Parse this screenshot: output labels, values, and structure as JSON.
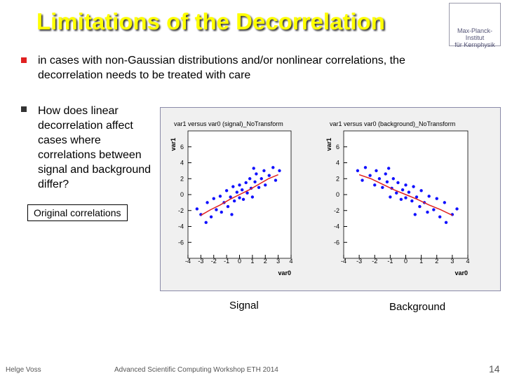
{
  "header": {
    "title": "Limitations of the Decorrelation",
    "logo": [
      "Max-Planck-Institut",
      "für Kernphysik"
    ]
  },
  "bullets": [
    "in cases with non-Gaussian distributions and/or nonlinear correlations, the  decorrelation needs to be treated with care",
    "How does linear decorrelation affect cases where correlations between signal and background differ?"
  ],
  "callout": "Original correlations",
  "plots": [
    {
      "type": "scatter",
      "title": "var1 versus var0 (signal)_NoTransform",
      "x_label": "var0",
      "y_label": "var1",
      "caption": "Signal",
      "xlim": [
        -4,
        4
      ],
      "ylim": [
        -8,
        8
      ],
      "xticks": [
        -4,
        -3,
        -2,
        -1,
        0,
        1,
        2,
        3,
        4
      ],
      "yticks": [
        -6,
        -4,
        -2,
        0,
        2,
        4,
        6
      ],
      "color": "#1010ff",
      "profile_color": "#e02020",
      "x": [
        -3,
        -2.5,
        -2.2,
        -2,
        -1.8,
        -1.5,
        -1.4,
        -1.2,
        -1,
        -0.9,
        -0.7,
        -0.5,
        -0.4,
        -0.2,
        0,
        0,
        0.2,
        0.3,
        0.5,
        0.6,
        0.8,
        0.9,
        1,
        1.2,
        1.3,
        1.5,
        1.7,
        1.9,
        2,
        2.3,
        2.6,
        2.8,
        -2.6,
        -3.3,
        3.1,
        1.1,
        -0.6
      ],
      "y": [
        -2.5,
        -1,
        -2.8,
        -0.5,
        -1.9,
        -0.2,
        -2.2,
        -1,
        0.5,
        -1.5,
        -0.3,
        1,
        -0.8,
        0.3,
        -0.4,
        1.2,
        0.6,
        -0.6,
        1.5,
        0.2,
        2,
        0.8,
        -0.3,
        1.6,
        2.6,
        0.9,
        2,
        3,
        1.2,
        2.4,
        3.4,
        1.8,
        -3.5,
        -1.8,
        3,
        3.3,
        -2.5
      ],
      "profile_x": [
        -3,
        -2.25,
        -1.5,
        -0.75,
        0,
        0.75,
        1.5,
        2.25,
        3
      ],
      "profile_y": [
        -2.6,
        -1.9,
        -1.3,
        -0.6,
        0,
        0.6,
        1.3,
        2,
        2.5
      ]
    },
    {
      "type": "scatter",
      "title": "var1 versus var0 (background)_NoTransform",
      "x_label": "var0",
      "y_label": "var1",
      "caption": "Background",
      "xlim": [
        -4,
        4
      ],
      "ylim": [
        -8,
        8
      ],
      "xticks": [
        -4,
        -3,
        -2,
        -1,
        0,
        1,
        2,
        3,
        4
      ],
      "yticks": [
        -6,
        -4,
        -2,
        0,
        2,
        4,
        6
      ],
      "color": "#1010ff",
      "profile_color": "#e02020",
      "x": [
        3,
        2.5,
        2.2,
        2,
        1.8,
        1.5,
        1.4,
        1.2,
        1,
        0.9,
        0.7,
        0.5,
        0.4,
        0.2,
        0,
        0,
        -0.2,
        -0.3,
        -0.5,
        -0.6,
        -0.8,
        -0.9,
        -1,
        -1.2,
        -1.3,
        -1.5,
        -1.7,
        -1.9,
        -2,
        -2.3,
        -2.6,
        -2.8,
        2.6,
        3.3,
        -3.1,
        -1.1,
        0.6
      ],
      "y": [
        -2.5,
        -1,
        -2.8,
        -0.5,
        -1.9,
        -0.2,
        -2.2,
        -1,
        0.5,
        -1.5,
        -0.3,
        1,
        -0.8,
        0.3,
        -0.4,
        1.2,
        0.6,
        -0.6,
        1.5,
        0.2,
        2,
        0.8,
        -0.3,
        1.6,
        2.6,
        0.9,
        2,
        3,
        1.2,
        2.4,
        3.4,
        1.8,
        -3.5,
        -1.8,
        3,
        3.3,
        -2.5
      ],
      "profile_x": [
        -3,
        -2.25,
        -1.5,
        -0.75,
        0,
        0.75,
        1.5,
        2.25,
        3
      ],
      "profile_y": [
        2.5,
        2,
        1.3,
        0.6,
        0,
        -0.6,
        -1.3,
        -1.9,
        -2.6
      ]
    }
  ],
  "footer": {
    "author": "Helge Voss",
    "event": "Advanced Scientific Computing Workshop ETH 2014",
    "page": 14
  }
}
